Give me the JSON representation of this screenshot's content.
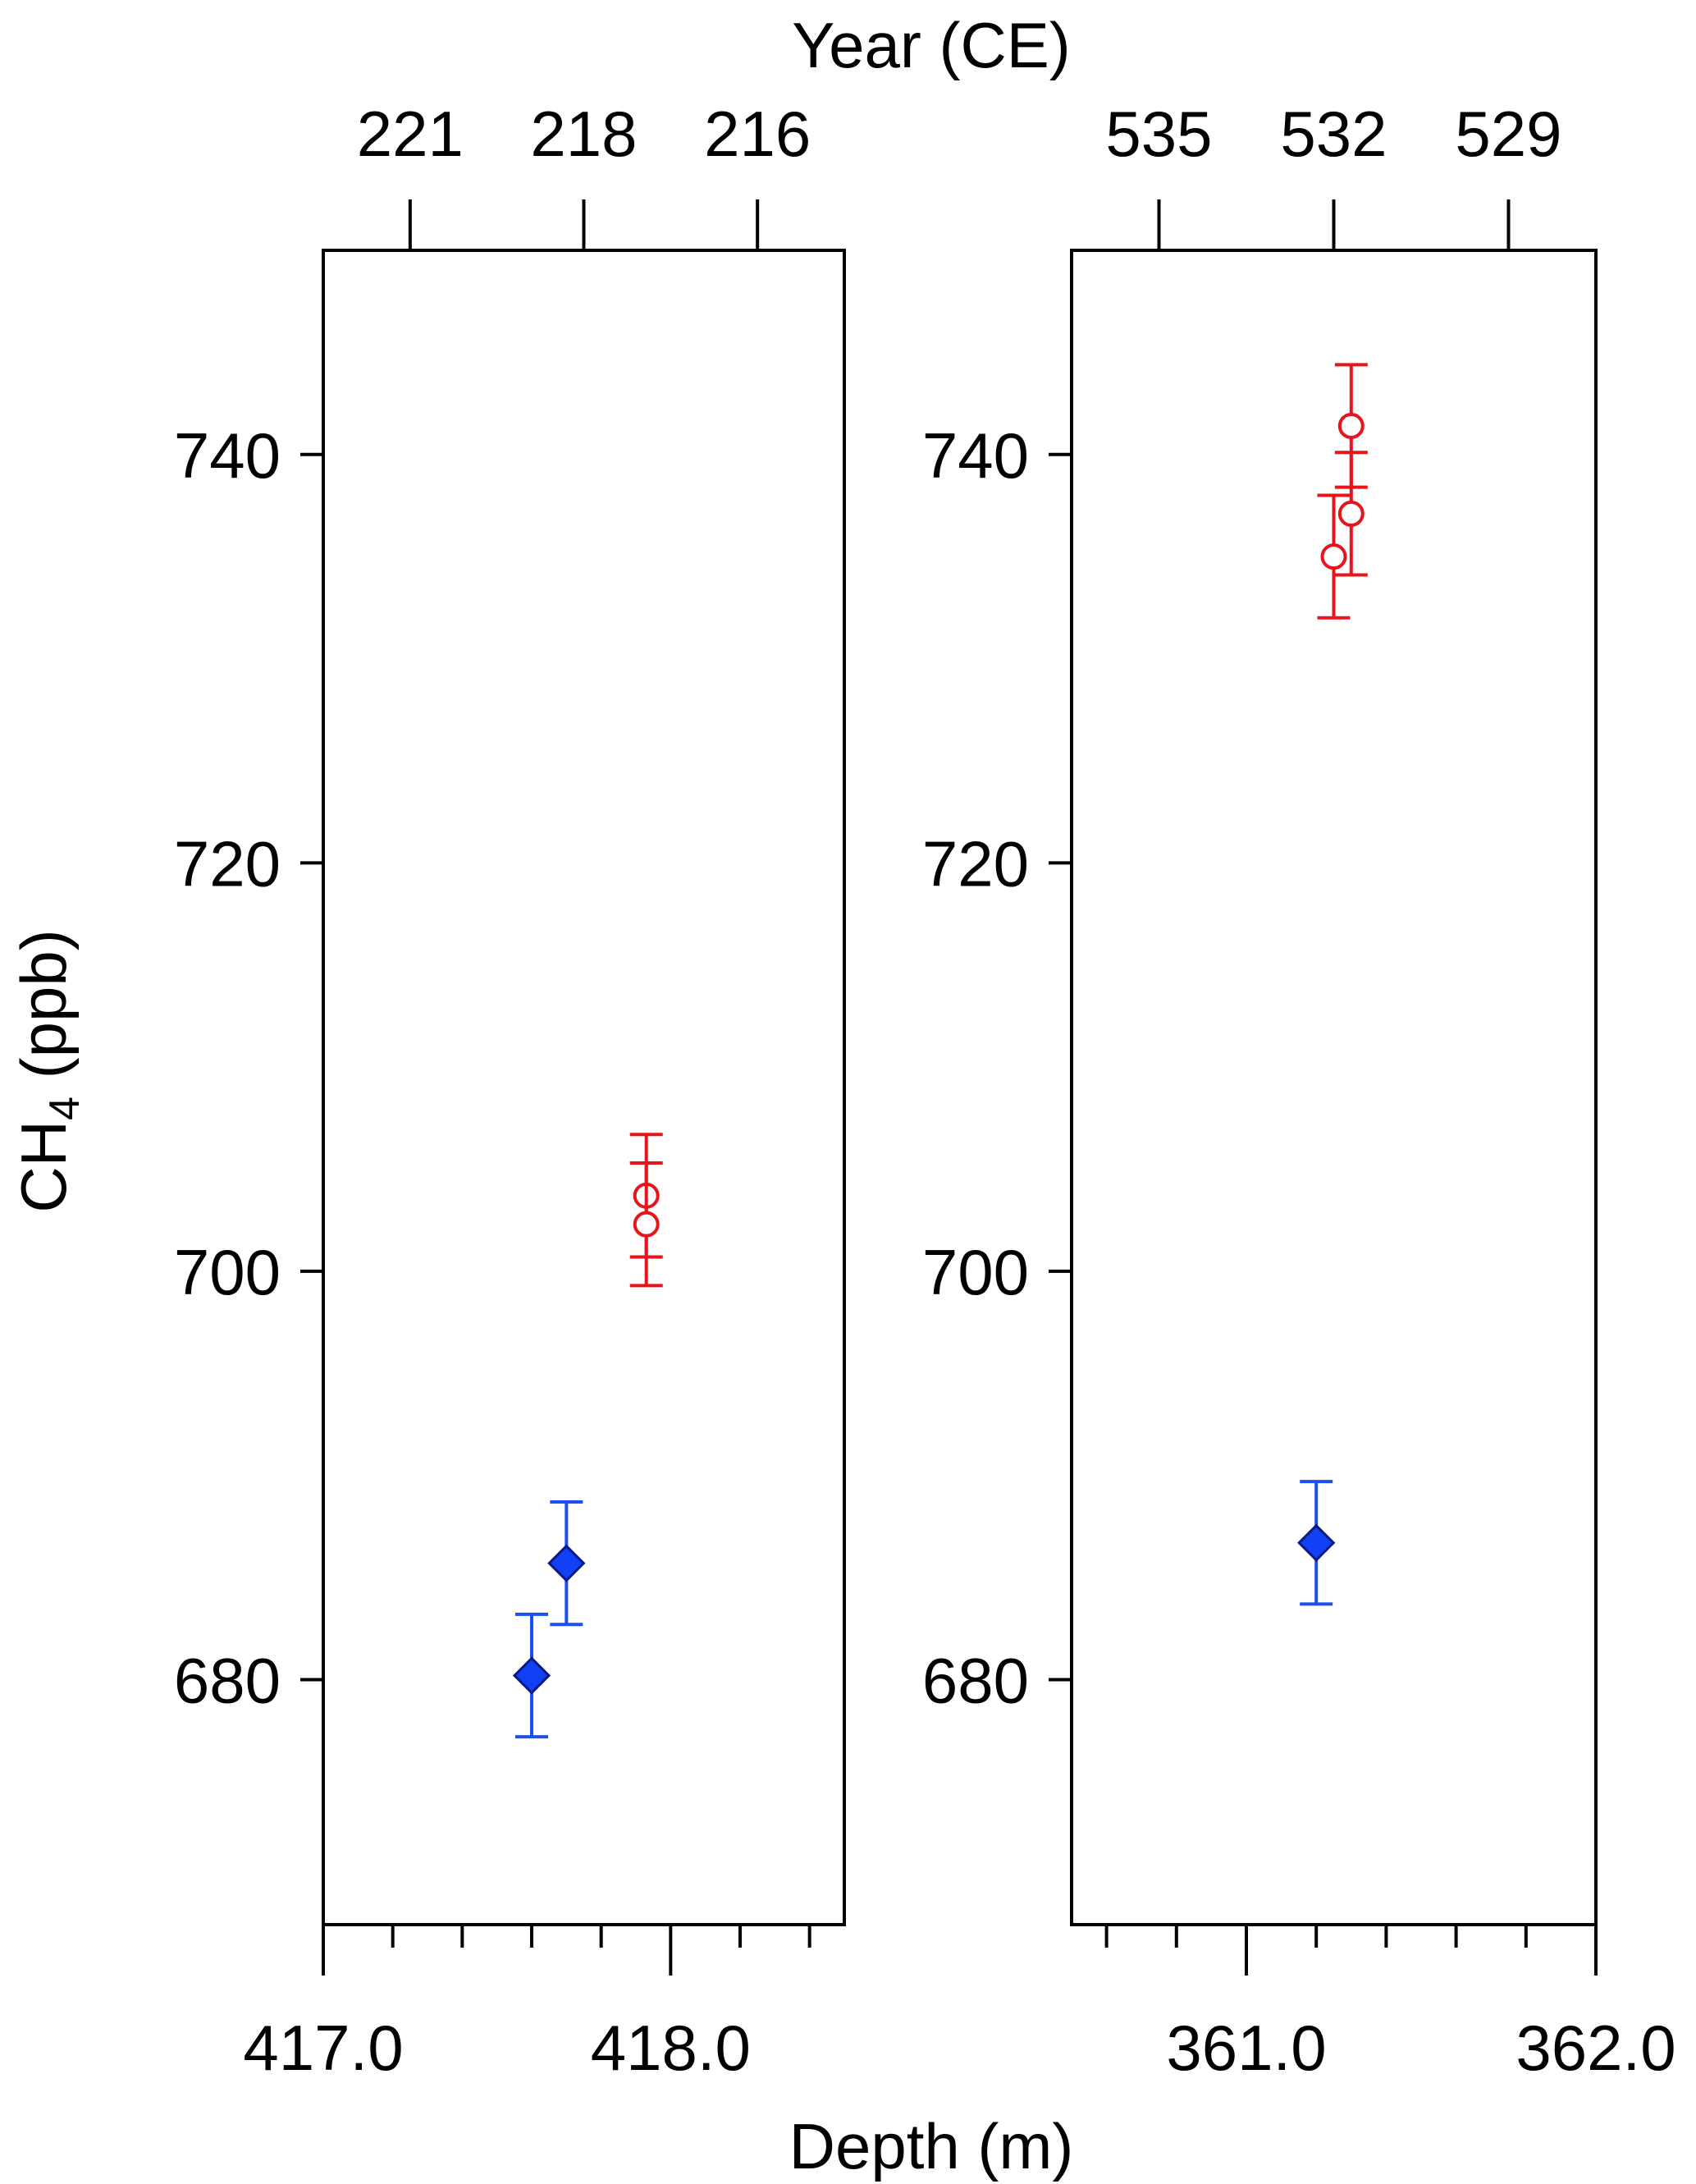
{
  "chart_data": {
    "type": "scatter",
    "shared_ylabel": "CH",
    "shared_ylabel_subscript": "4",
    "shared_ylabel_units": "(ppb)",
    "shared_xlabel": "Depth (m)",
    "shared_top_xlabel": "Year (CE)",
    "ylim": [
      668,
      750
    ],
    "yticks": [
      680,
      700,
      720,
      740
    ],
    "colors": {
      "red": "#e8141c",
      "blue_line": "#1c4ef0",
      "blue_fill": "#1240f5",
      "blue_edge": "#0a1a80",
      "axes": "#000000"
    },
    "panels": [
      {
        "xlim": [
          417.0,
          418.5
        ],
        "xtick_labels": [
          417.0,
          418.0
        ],
        "xtick_label_text": [
          "417.0",
          "418.0"
        ],
        "xminor_ticks": [
          417.2,
          417.4,
          417.6,
          417.8,
          418.2,
          418.4
        ],
        "top_ticks": [
          {
            "label": "221",
            "depth": 417.25
          },
          {
            "label": "218",
            "depth": 417.75
          },
          {
            "label": "216",
            "depth": 418.25
          }
        ],
        "series": [
          {
            "marker": "circle-open",
            "color": "red",
            "points": [
              {
                "x": 417.93,
                "y": 703.7,
                "err": 3.0
              },
              {
                "x": 417.93,
                "y": 702.3,
                "err": 3.0
              }
            ]
          },
          {
            "marker": "diamond-filled",
            "color": "blue",
            "points": [
              {
                "x": 417.6,
                "y": 680.2,
                "err": 3.0
              },
              {
                "x": 417.7,
                "y": 685.7,
                "err": 3.0
              }
            ]
          }
        ]
      },
      {
        "xlim": [
          360.5,
          362.0
        ],
        "xtick_labels": [
          361.0,
          362.0
        ],
        "xtick_label_text": [
          "361.0",
          "362.0"
        ],
        "xminor_ticks": [
          360.6,
          360.8,
          361.2,
          361.4,
          361.6,
          361.8
        ],
        "top_ticks": [
          {
            "label": "535",
            "depth": 360.75
          },
          {
            "label": "532",
            "depth": 361.25
          },
          {
            "label": "529",
            "depth": 361.75
          }
        ],
        "series": [
          {
            "marker": "circle-open",
            "color": "red",
            "points": [
              {
                "x": 361.3,
                "y": 741.4,
                "err": 3.0
              },
              {
                "x": 361.3,
                "y": 737.1,
                "err": 3.0
              },
              {
                "x": 361.25,
                "y": 735.0,
                "err": 3.0
              }
            ]
          },
          {
            "marker": "diamond-filled",
            "color": "blue",
            "points": [
              {
                "x": 361.2,
                "y": 686.7,
                "err": 3.0
              }
            ]
          }
        ]
      }
    ]
  }
}
